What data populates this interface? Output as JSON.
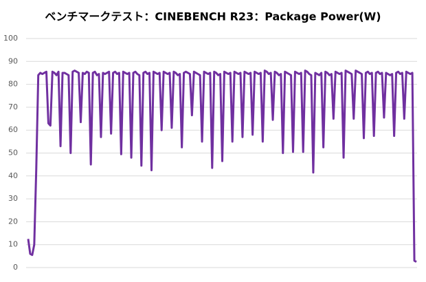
{
  "chart_data": {
    "type": "line",
    "title": "ベンチマークテスト：CINEBENCH R23：Package Power(W)",
    "color": "#7030a0",
    "grid": true,
    "ylim": [
      0,
      100
    ],
    "yticks": [
      0,
      10,
      20,
      30,
      40,
      50,
      60,
      70,
      80,
      90,
      100
    ],
    "values": [
      12.5,
      6,
      5.5,
      10,
      43,
      84,
      85,
      84.5,
      85,
      85.5,
      63,
      62,
      85.5,
      85,
      84,
      85.5,
      53,
      85,
      85,
      84.5,
      84,
      50,
      85.5,
      86,
      85.5,
      85,
      63.5,
      85,
      84.5,
      85.5,
      85,
      45,
      85,
      85.5,
      84,
      84.5,
      57,
      85,
      84.5,
      85,
      85.5,
      58.5,
      85,
      85.5,
      84.5,
      85,
      49.5,
      85.5,
      85,
      84.5,
      85,
      48,
      85,
      85.5,
      84.5,
      84,
      44.5,
      85,
      85.5,
      84.5,
      85,
      42.5,
      85.5,
      85,
      84.5,
      85,
      60,
      85.5,
      85,
      84.5,
      85,
      61,
      85.5,
      85,
      84,
      84.5,
      52.5,
      85,
      85.5,
      85,
      84.5,
      66.5,
      85.5,
      85,
      84.5,
      84,
      55,
      85.5,
      85,
      84.5,
      85,
      43.5,
      85.5,
      85,
      84,
      84.5,
      46.5,
      85.5,
      85,
      84.5,
      85,
      55,
      85.5,
      85,
      84.5,
      85,
      57,
      85.5,
      85,
      84.5,
      85,
      58,
      85.5,
      85,
      84.5,
      85,
      55,
      86,
      85.5,
      84.5,
      85,
      64.5,
      85.5,
      85,
      84,
      84.5,
      50,
      85.5,
      85,
      84.5,
      84,
      50.5,
      85.5,
      85,
      84.5,
      85,
      50.5,
      86,
      85.5,
      84.5,
      84,
      41.5,
      85,
      84.5,
      84,
      85,
      52.5,
      85.5,
      85,
      84,
      84.5,
      65,
      85.5,
      85,
      84.5,
      85,
      48,
      86,
      85.5,
      85,
      84.5,
      65,
      86,
      85.5,
      85,
      84.5,
      56.5,
      85,
      85.5,
      84.5,
      85,
      57.5,
      85,
      85.5,
      84.5,
      85,
      65.5,
      85,
      84.5,
      84,
      84.5,
      57.5,
      85,
      85.5,
      84.5,
      85,
      65,
      85.5,
      85,
      84.5,
      85,
      3,
      2.5
    ]
  }
}
